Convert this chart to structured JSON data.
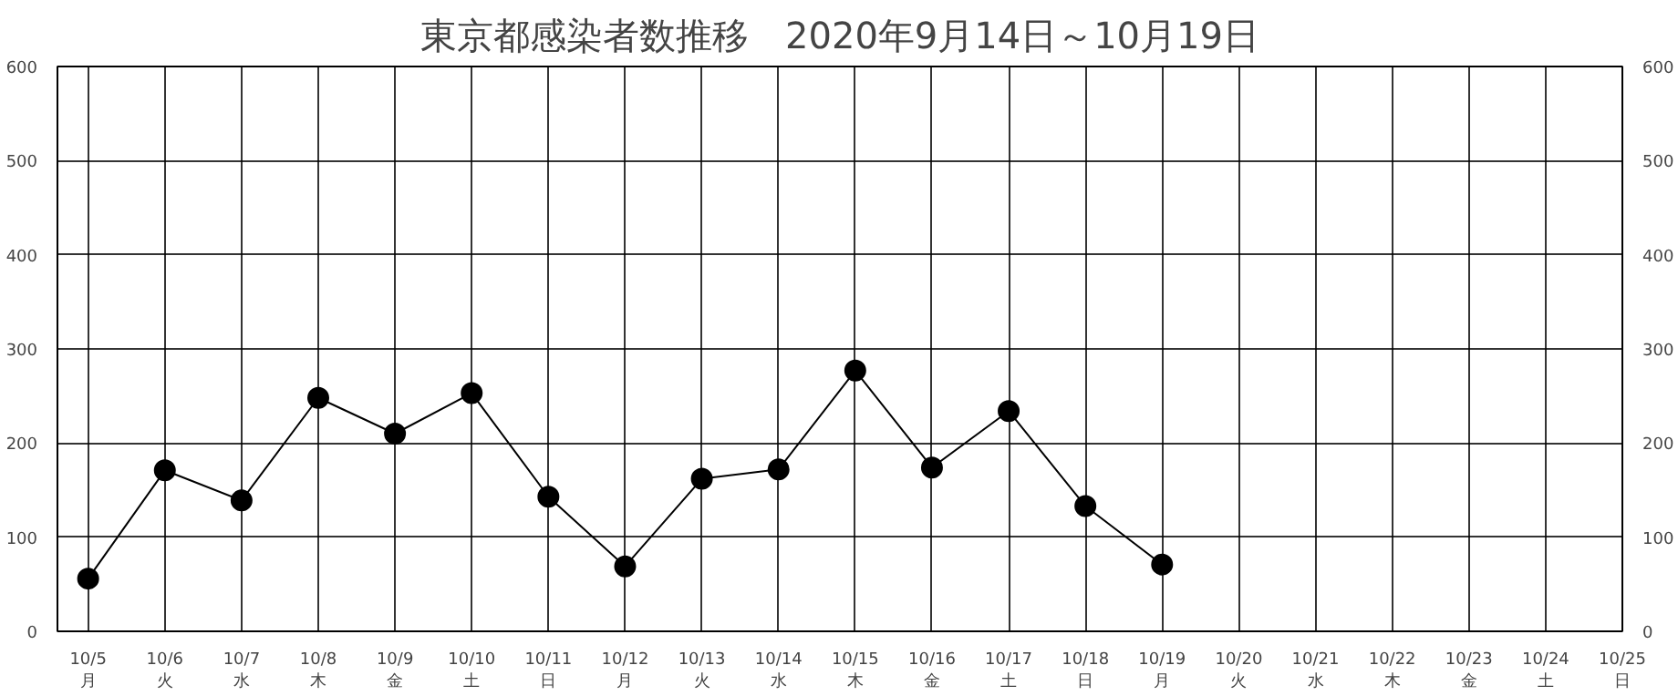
{
  "chart_data": {
    "type": "line",
    "title": "東京都感染者数推移　2020年9月14日～10月19日",
    "categories": [
      "10/5\n月",
      "10/6\n火",
      "10/7\n水",
      "10/8\n木",
      "10/9\n金",
      "10/10\n土",
      "10/11\n日",
      "10/12\n月",
      "10/13\n火",
      "10/14\n水",
      "10/15\n木",
      "10/16\n金",
      "10/17\n土",
      "10/18\n日",
      "10/19\n月",
      "10/20\n火",
      "10/21\n水",
      "10/22\n木",
      "10/23\n金",
      "10/24\n土",
      "10/25\n日"
    ],
    "series": [
      {
        "color": "#000000",
        "values": [
          56,
          171,
          139,
          248,
          210,
          253,
          143,
          69,
          162,
          172,
          277,
          174,
          234,
          133,
          71,
          null,
          null,
          null,
          null,
          null,
          null
        ]
      }
    ],
    "ylim": [
      0,
      600
    ],
    "yticks": [
      0,
      100,
      200,
      300,
      400,
      500,
      600
    ],
    "y2lim": [
      0,
      600
    ],
    "y2ticks": [
      0,
      100,
      200,
      300,
      400,
      500,
      600
    ],
    "grid": true,
    "marker": "circle",
    "line_style": "solid"
  }
}
